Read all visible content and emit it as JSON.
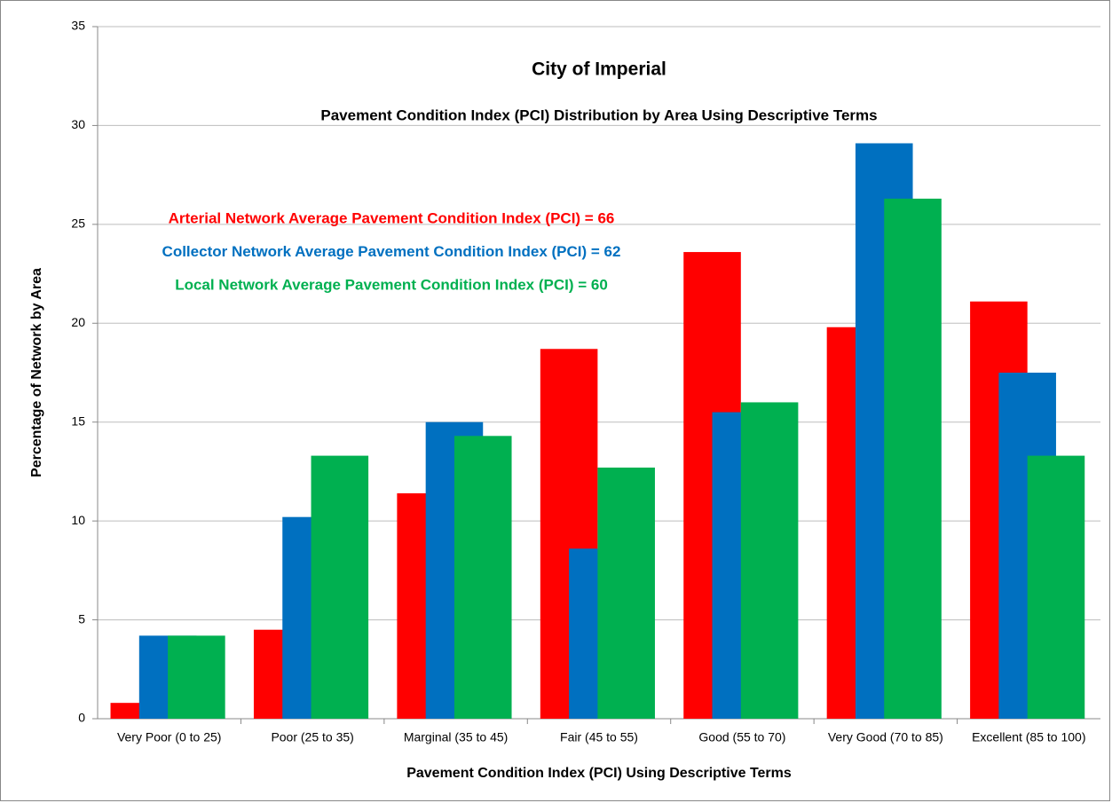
{
  "chart_data": {
    "type": "bar",
    "title": "City of Imperial",
    "subtitle": "Pavement Condition Index (PCI) Distribution by Area Using Descriptive Terms",
    "x_label": "Pavement Condition Index (PCI) Using Descriptive Terms",
    "y_label": "Percentage of Network by Area",
    "annotations": [
      {
        "text": "Arterial Network Average Pavement Condition Index (PCI) = 66",
        "color": "#ff0000"
      },
      {
        "text": "Collector Network Average Pavement Condition Index (PCI) = 62",
        "color": "#0070c0"
      },
      {
        "text": "Local Network Average Pavement Condition Index (PCI) = 60",
        "color": "#00b050"
      }
    ],
    "categories": [
      "Very Poor (0 to 25)",
      "Poor (25 to 35)",
      "Marginal (35 to 45)",
      "Fair (45 to 55)",
      "Good (55 to 70)",
      "Very Good (70 to 85)",
      "Excellent (85 to 100)"
    ],
    "series": [
      {
        "color": "#ff0000",
        "values": [
          0.8,
          4.5,
          11.4,
          18.7,
          23.6,
          19.8,
          21.1
        ]
      },
      {
        "color": "#0070c0",
        "values": [
          4.2,
          10.2,
          15.0,
          8.6,
          15.5,
          29.1,
          17.5
        ]
      },
      {
        "color": "#00b050",
        "values": [
          4.2,
          13.3,
          14.3,
          12.7,
          16.0,
          26.3,
          13.3
        ]
      }
    ],
    "ylim": [
      0,
      35
    ],
    "yticks": [
      0,
      5,
      10,
      15,
      20,
      25,
      30,
      35
    ],
    "grid": true
  }
}
